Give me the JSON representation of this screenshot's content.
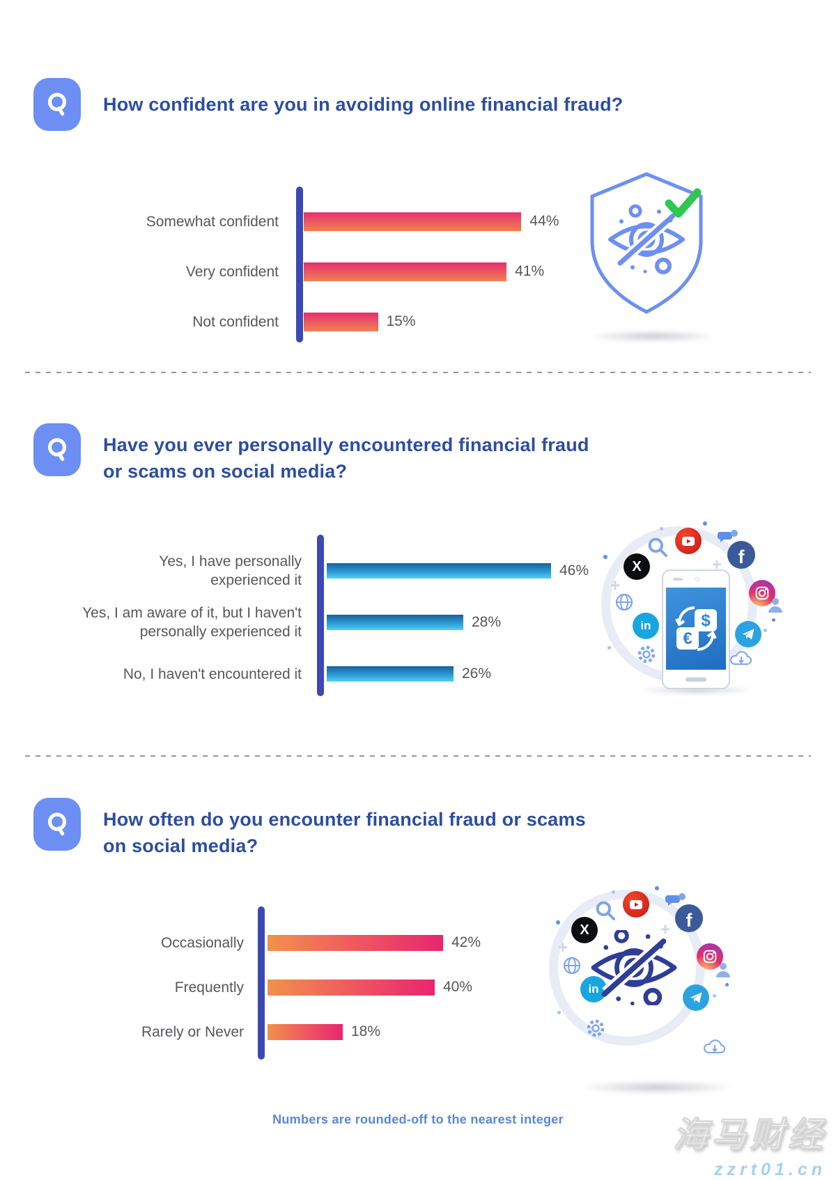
{
  "style": {
    "accent_blue": "#6d8ff4",
    "heading_color": "#2d4da1",
    "axis_color": "#3b49b3",
    "label_color": "#55575b",
    "pink_bar_gradient": [
      "#e5306f",
      "#f08152"
    ],
    "blue_bar_gradient": [
      "#17609f",
      "#4fd0f2"
    ],
    "orange_pink_bar_gradient": [
      "#f2914c",
      "#e9256f"
    ],
    "check_green": "#2fc750",
    "footer_blue": "#5b87d9"
  },
  "sections": [
    {
      "illustration": "shield-privacy-check",
      "illustration_icons": [
        "shield",
        "eye-off",
        "check"
      ]
    },
    {
      "illustration": "smartphone-currency-exchange-social-ring",
      "illustration_icons": [
        "youtube",
        "x-twitter",
        "facebook",
        "instagram",
        "telegram",
        "linkedin",
        "globe",
        "search",
        "gear",
        "cloud-download",
        "chat-bubbles",
        "user",
        "smartphone",
        "currency-exchange"
      ]
    },
    {
      "illustration": "eye-off-social-ring",
      "illustration_icons": [
        "youtube",
        "x-twitter",
        "facebook",
        "instagram",
        "telegram",
        "linkedin",
        "globe",
        "search",
        "gear",
        "cloud-download",
        "chat-bubbles",
        "user",
        "eye-off"
      ]
    }
  ],
  "chart_data": [
    {
      "type": "bar",
      "orientation": "horizontal",
      "title": "How confident are you in avoiding online financial fraud?",
      "title_lines": [
        "How confident are you in avoiding online financial fraud?"
      ],
      "categories": [
        "Somewhat confident",
        "Very confident",
        "Not confident"
      ],
      "values": [
        44,
        41,
        15
      ],
      "value_labels": [
        "44%",
        "41%",
        "15%"
      ],
      "xlim": [
        0,
        100
      ],
      "grid": false,
      "legend": false,
      "bar_color": "pink-to-orange vertical gradient"
    },
    {
      "type": "bar",
      "orientation": "horizontal",
      "title": "Have you ever personally encountered financial fraud or scams on social media?",
      "title_lines": [
        "Have you ever personally encountered financial fraud",
        "or scams on social media?"
      ],
      "categories": [
        "Yes, I have personally\nexperienced it",
        "Yes, I am aware of it, but I haven't\npersonally experienced it",
        "No, I haven't encountered it"
      ],
      "values": [
        46,
        28,
        26
      ],
      "value_labels": [
        "46%",
        "28%",
        "26%"
      ],
      "xlim": [
        0,
        100
      ],
      "grid": false,
      "legend": false,
      "bar_color": "dark-blue-to-cyan vertical gradient"
    },
    {
      "type": "bar",
      "orientation": "horizontal",
      "title": "How often do you encounter financial fraud or scams on social media?",
      "title_lines": [
        "How often do you encounter financial fraud or scams",
        "on social media?"
      ],
      "categories": [
        "Occasionally",
        "Frequently",
        "Rarely or Never"
      ],
      "values": [
        42,
        40,
        18
      ],
      "value_labels": [
        "42%",
        "40%",
        "18%"
      ],
      "xlim": [
        0,
        100
      ],
      "grid": false,
      "legend": false,
      "bar_color": "orange-to-magenta horizontal gradient"
    }
  ],
  "footer": {
    "note": "Numbers are rounded-off to the nearest integer"
  },
  "watermark": {
    "brand": "海马财经",
    "site": "zzrt01.cn"
  }
}
